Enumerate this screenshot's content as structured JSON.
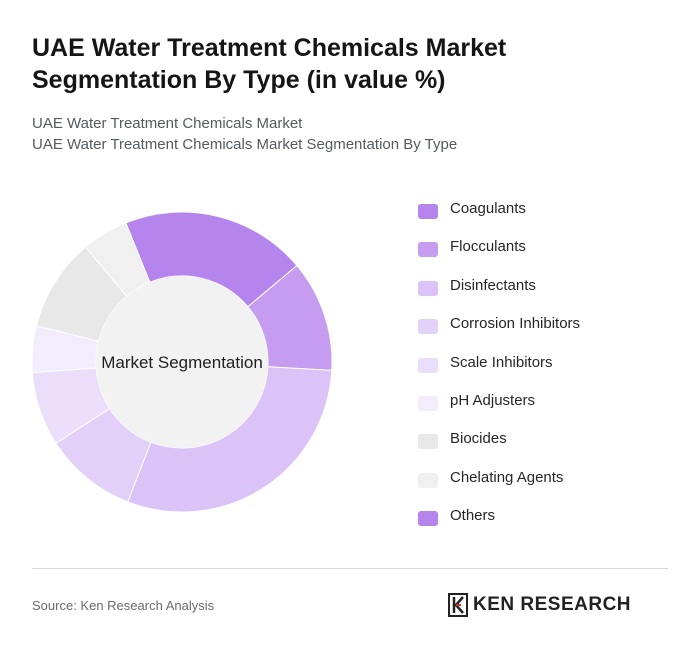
{
  "header": {
    "title": "UAE Water Treatment Chemicals Market Segmentation By Type (in value %)",
    "subtitle_line1": "UAE Water Treatment Chemicals Market",
    "subtitle_line2": "UAE Water Treatment Chemicals Market Segmentation By Type"
  },
  "chart_data": {
    "type": "pie",
    "variant": "donut",
    "center_label": "Market Segmentation",
    "categories": [
      "Coagulants",
      "Flocculants",
      "Disinfectants",
      "Corrosion Inhibitors",
      "Scale Inhibitors",
      "pH Adjusters",
      "Biocides",
      "Chelating Agents",
      "Others"
    ],
    "values": [
      20,
      12,
      30,
      10,
      8,
      5,
      10,
      5,
      0
    ],
    "colors": [
      "#b584ec",
      "#c59cf0",
      "#dbc3f8",
      "#e3d0f8",
      "#ebdefa",
      "#f3ecfc",
      "#e8e8e8",
      "#f0f0f0",
      "#b584ec"
    ],
    "legend_position": "right",
    "unit": "%"
  },
  "footer": {
    "source": "Source: Ken Research Analysis",
    "brand": "KEN RESEARCH",
    "logo_letter": "K"
  }
}
